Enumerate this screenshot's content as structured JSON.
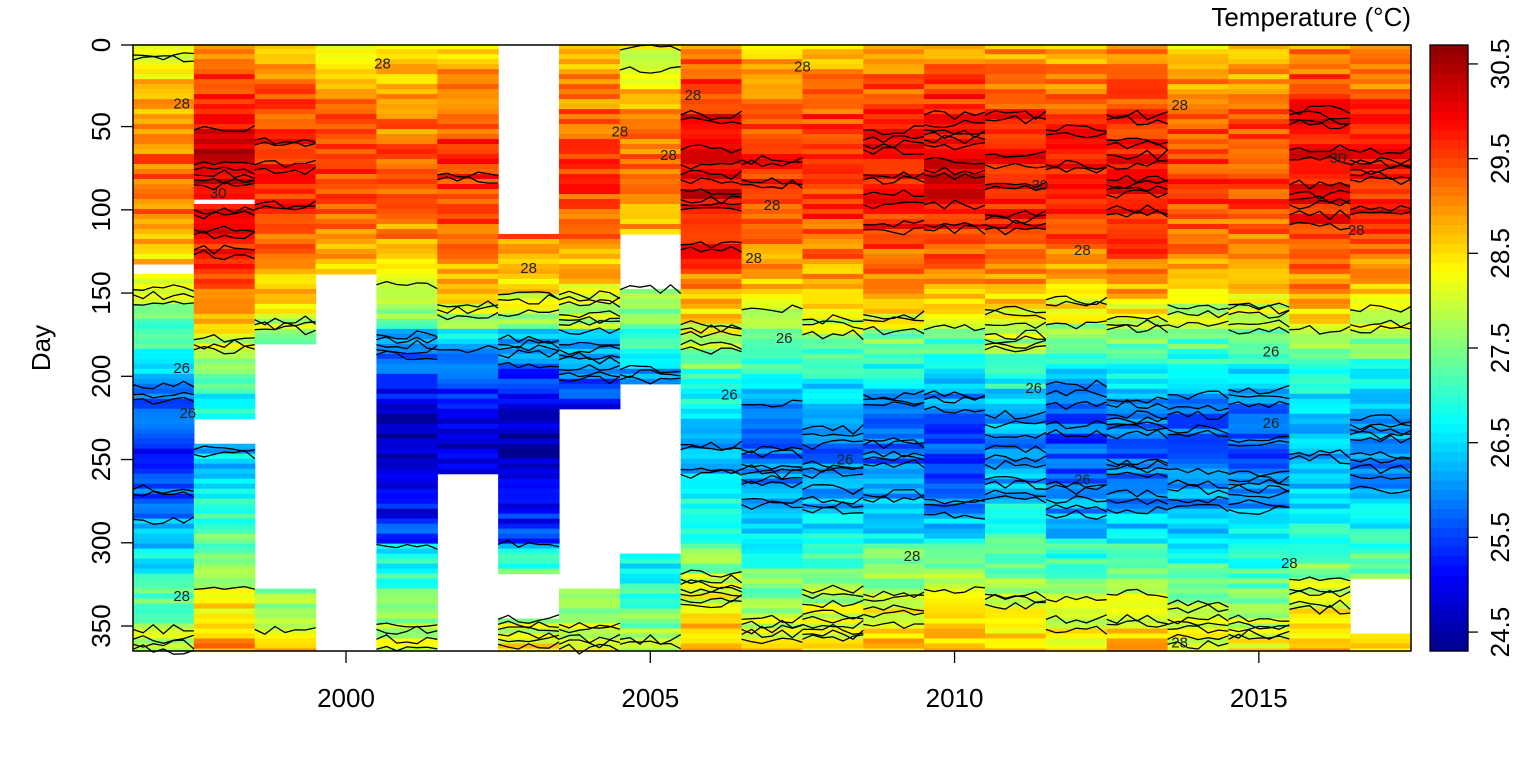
{
  "chart_data": {
    "type": "heatmap",
    "title": "",
    "xlabel": "",
    "ylabel": "Day",
    "x_years": [
      1997,
      1998,
      1999,
      2000,
      2001,
      2002,
      2003,
      2004,
      2005,
      2006,
      2007,
      2008,
      2009,
      2010,
      2011,
      2012,
      2013,
      2014,
      2015,
      2016,
      2017
    ],
    "xlim": [
      1996.5,
      2017.5
    ],
    "ylim": [
      365,
      1
    ],
    "x_ticks": [
      2000,
      2005,
      2010,
      2015
    ],
    "y_ticks": [
      0,
      50,
      100,
      150,
      200,
      250,
      300,
      350
    ],
    "x_tick_labels": [
      "2000",
      "2005",
      "2010",
      "2015"
    ],
    "y_tick_labels": [
      "0",
      "50",
      "100",
      "150",
      "200",
      "250",
      "300",
      "350"
    ],
    "colorbar": {
      "title": "Temperature (°C)",
      "range": [
        24.3,
        30.7
      ],
      "ticks": [
        24.5,
        25.5,
        26.5,
        27.5,
        28.5,
        29.5,
        30.5
      ],
      "tick_labels": [
        "24.5",
        "25.5",
        "26.5",
        "27.5",
        "28.5",
        "29.5",
        "30.5"
      ],
      "colors": [
        "#00008B",
        "#0000FF",
        "#0080FF",
        "#00FFFF",
        "#80FF80",
        "#FFFF00",
        "#FF8000",
        "#FF0000",
        "#8B0000"
      ]
    },
    "contour_levels": [
      26,
      28,
      30
    ],
    "contour_labels": [
      {
        "text": "28",
        "year": 2000.6,
        "day": 12
      },
      {
        "text": "28",
        "year": 1997.3,
        "day": 36
      },
      {
        "text": "28",
        "year": 2007.5,
        "day": 14
      },
      {
        "text": "28",
        "year": 2005.7,
        "day": 31
      },
      {
        "text": "28",
        "year": 2013.7,
        "day": 37
      },
      {
        "text": "28",
        "year": 2004.5,
        "day": 53
      },
      {
        "text": "28",
        "year": 2005.3,
        "day": 67
      },
      {
        "text": "28",
        "year": 2007.0,
        "day": 97
      },
      {
        "text": "28",
        "year": 2006.7,
        "day": 129
      },
      {
        "text": "28",
        "year": 2003.0,
        "day": 135
      },
      {
        "text": "28",
        "year": 2012.1,
        "day": 124
      },
      {
        "text": "28",
        "year": 2016.6,
        "day": 112
      },
      {
        "text": "28",
        "year": 2009.3,
        "day": 308
      },
      {
        "text": "28",
        "year": 2015.5,
        "day": 312
      },
      {
        "text": "28",
        "year": 1997.3,
        "day": 332
      },
      {
        "text": "28",
        "year": 2013.7,
        "day": 360
      },
      {
        "text": "30",
        "year": 1997.9,
        "day": 90
      },
      {
        "text": "30",
        "year": 2016.3,
        "day": 69
      },
      {
        "text": "30",
        "year": 2011.4,
        "day": 85
      },
      {
        "text": "26",
        "year": 1997.3,
        "day": 195
      },
      {
        "text": "26",
        "year": 1997.4,
        "day": 222
      },
      {
        "text": "26",
        "year": 2006.3,
        "day": 211
      },
      {
        "text": "26",
        "year": 2007.2,
        "day": 177
      },
      {
        "text": "26",
        "year": 2008.2,
        "day": 250
      },
      {
        "text": "26",
        "year": 2011.3,
        "day": 207
      },
      {
        "text": "26",
        "year": 2012.1,
        "day": 262
      },
      {
        "text": "26",
        "year": 2015.2,
        "day": 228
      },
      {
        "text": "26",
        "year": 2015.2,
        "day": 185
      }
    ],
    "missing": [
      {
        "year": 1997,
        "from": 132,
        "to": 138
      },
      {
        "year": 1998,
        "from": 225,
        "to": 238
      },
      {
        "year": 1998,
        "from": 92,
        "to": 94
      },
      {
        "year": 1999,
        "from": 181,
        "to": 326
      },
      {
        "year": 2000,
        "from": 137,
        "to": 365
      },
      {
        "year": 2002,
        "from": 259,
        "to": 365
      },
      {
        "year": 2003,
        "from": 1,
        "to": 114
      },
      {
        "year": 2003,
        "from": 318,
        "to": 345
      },
      {
        "year": 2004,
        "from": 219,
        "to": 326
      },
      {
        "year": 2005,
        "from": 113,
        "to": 145
      },
      {
        "year": 2005,
        "from": 205,
        "to": 305
      },
      {
        "year": 2017,
        "from": 321,
        "to": 352
      }
    ]
  }
}
